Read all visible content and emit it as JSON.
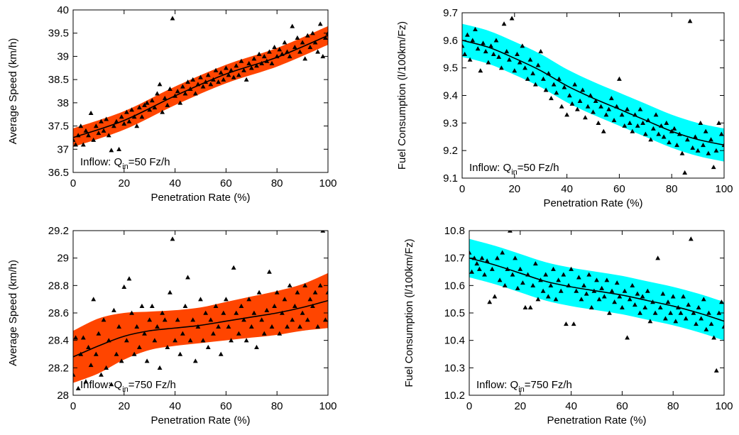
{
  "chart_data": [
    {
      "type": "scatter",
      "xlabel": "Penetration Rate (%)",
      "ylabel": "Average Speed (km/h)",
      "xlim": [
        0,
        100
      ],
      "ylim": [
        36.5,
        40
      ],
      "xticks": [
        "0",
        "20",
        "40",
        "60",
        "80",
        "100"
      ],
      "yticks": [
        "36.5",
        "37",
        "37.5",
        "38",
        "38.5",
        "39",
        "39.5",
        "40"
      ],
      "annotation": {
        "prefix": "Inflow: Q",
        "sub": "in",
        "suffix": "=50 Fz/h"
      },
      "band_color": "#ff4500",
      "fit": {
        "x": [
          0,
          20,
          40,
          60,
          80,
          100
        ],
        "y": [
          37.25,
          37.62,
          38.15,
          38.62,
          38.98,
          39.45
        ]
      },
      "band": {
        "x": [
          0,
          20,
          40,
          60,
          80,
          100
        ],
        "lower": [
          37.05,
          37.42,
          37.95,
          38.42,
          38.78,
          39.25
        ],
        "upper": [
          37.45,
          37.82,
          38.35,
          38.82,
          39.18,
          39.65
        ]
      },
      "points": {
        "x": [
          0,
          1,
          2,
          3,
          4,
          5,
          6,
          7,
          8,
          9,
          10,
          11,
          12,
          13,
          14,
          15,
          16,
          17,
          18,
          19,
          20,
          21,
          22,
          23,
          24,
          25,
          26,
          27,
          28,
          29,
          30,
          31,
          32,
          33,
          34,
          35,
          36,
          37,
          38,
          39,
          40,
          41,
          42,
          43,
          44,
          45,
          46,
          47,
          48,
          49,
          50,
          51,
          52,
          53,
          54,
          55,
          56,
          57,
          58,
          59,
          60,
          61,
          62,
          63,
          64,
          65,
          66,
          67,
          68,
          69,
          70,
          71,
          72,
          73,
          74,
          75,
          76,
          77,
          78,
          79,
          80,
          81,
          82,
          83,
          84,
          85,
          86,
          87,
          88,
          89,
          90,
          91,
          92,
          93,
          94,
          95,
          96,
          97,
          98,
          99,
          100
        ],
        "y": [
          37.2,
          37.1,
          37.3,
          37.5,
          37.1,
          37.4,
          37.3,
          37.78,
          37.2,
          37.5,
          37.35,
          37.6,
          37.4,
          37.65,
          37.3,
          36.98,
          37.5,
          37.6,
          37.0,
          37.7,
          37.55,
          37.8,
          37.6,
          37.85,
          37.7,
          37.5,
          37.9,
          37.7,
          37.95,
          38.0,
          37.85,
          38.05,
          37.9,
          38.2,
          38.4,
          37.8,
          38.1,
          37.95,
          38.3,
          39.82,
          38.15,
          38.25,
          38.0,
          38.35,
          38.2,
          38.45,
          38.3,
          38.5,
          38.2,
          38.4,
          38.55,
          38.35,
          38.45,
          38.6,
          38.4,
          38.5,
          38.7,
          38.45,
          38.65,
          38.5,
          38.75,
          38.6,
          38.7,
          38.55,
          38.8,
          38.6,
          38.9,
          38.7,
          38.5,
          38.85,
          38.75,
          38.95,
          38.8,
          39.05,
          38.85,
          39.0,
          38.9,
          39.1,
          38.85,
          39.2,
          39.0,
          39.15,
          39.05,
          39.3,
          39.1,
          39.0,
          39.65,
          39.2,
          39.4,
          39.1,
          39.3,
          38.95,
          39.45,
          39.2,
          39.5,
          39.3,
          39.1,
          39.7,
          39.0,
          39.4,
          39.5
        ]
      }
    },
    {
      "type": "scatter",
      "xlabel": "Penetration Rate (%)",
      "ylabel": "Fuel Consumption (l/100km/Fz)",
      "xlim": [
        0,
        100
      ],
      "ylim": [
        9.1,
        9.7
      ],
      "xticks": [
        "0",
        "20",
        "40",
        "60",
        "80",
        "100"
      ],
      "yticks": [
        "9.1",
        "9.2",
        "9.3",
        "9.4",
        "9.5",
        "9.6",
        "9.7"
      ],
      "annotation": {
        "prefix": "Inflow: Q",
        "sub": "in",
        "suffix": "=50 Fz/h"
      },
      "band_color": "#00ffff",
      "fit": {
        "x": [
          0,
          10,
          20,
          30,
          40,
          50,
          60,
          70,
          80,
          90,
          100
        ],
        "y": [
          9.6,
          9.575,
          9.535,
          9.49,
          9.435,
          9.39,
          9.35,
          9.31,
          9.27,
          9.24,
          9.22
        ]
      },
      "band": {
        "x": [
          0,
          10,
          20,
          30,
          40,
          50,
          60,
          70,
          80,
          90,
          100
        ],
        "lower": [
          9.54,
          9.515,
          9.475,
          9.43,
          9.375,
          9.33,
          9.29,
          9.25,
          9.21,
          9.18,
          9.16
        ],
        "upper": [
          9.66,
          9.635,
          9.595,
          9.55,
          9.495,
          9.45,
          9.41,
          9.37,
          9.33,
          9.3,
          9.28
        ]
      },
      "points": {
        "x": [
          0,
          1,
          2,
          3,
          4,
          5,
          6,
          7,
          8,
          9,
          10,
          11,
          12,
          13,
          14,
          15,
          16,
          17,
          18,
          19,
          20,
          21,
          22,
          23,
          24,
          25,
          26,
          27,
          28,
          29,
          30,
          31,
          32,
          33,
          34,
          35,
          36,
          37,
          38,
          39,
          40,
          41,
          42,
          43,
          44,
          45,
          46,
          47,
          48,
          49,
          50,
          51,
          52,
          53,
          54,
          55,
          56,
          57,
          58,
          59,
          60,
          61,
          62,
          63,
          64,
          65,
          66,
          67,
          68,
          69,
          70,
          71,
          72,
          73,
          74,
          75,
          76,
          77,
          78,
          79,
          80,
          81,
          82,
          83,
          84,
          85,
          86,
          87,
          88,
          89,
          90,
          91,
          92,
          93,
          94,
          95,
          96,
          97,
          98,
          99,
          100
        ],
        "y": [
          9.58,
          9.55,
          9.62,
          9.53,
          9.6,
          9.64,
          9.57,
          9.49,
          9.59,
          9.56,
          9.52,
          9.58,
          9.55,
          9.6,
          9.54,
          9.5,
          9.66,
          9.56,
          9.53,
          9.68,
          9.49,
          9.55,
          9.52,
          9.58,
          9.5,
          9.46,
          9.53,
          9.48,
          9.44,
          9.51,
          9.56,
          9.46,
          9.42,
          9.48,
          9.39,
          9.44,
          9.41,
          9.46,
          9.36,
          9.43,
          9.33,
          9.4,
          9.37,
          9.44,
          9.35,
          9.38,
          9.42,
          9.32,
          9.36,
          9.4,
          9.34,
          9.38,
          9.3,
          9.36,
          9.27,
          9.33,
          9.35,
          9.39,
          9.31,
          9.36,
          9.46,
          9.33,
          9.29,
          9.35,
          9.3,
          9.27,
          9.33,
          9.29,
          9.35,
          9.3,
          9.26,
          9.31,
          9.24,
          9.28,
          9.33,
          9.26,
          9.29,
          9.25,
          9.3,
          9.23,
          9.27,
          9.28,
          9.22,
          9.26,
          9.19,
          9.12,
          9.24,
          9.67,
          9.21,
          9.25,
          9.2,
          9.3,
          9.22,
          9.27,
          9.19,
          9.24,
          9.14,
          9.2,
          9.3,
          9.26,
          9.22
        ]
      }
    },
    {
      "type": "scatter",
      "xlabel": "Penetration Rate (%)",
      "ylabel": "Average Speed (km/h)",
      "xlim": [
        0,
        100
      ],
      "ylim": [
        28,
        29.2
      ],
      "xticks": [
        "0",
        "20",
        "40",
        "60",
        "80",
        "100"
      ],
      "yticks": [
        "28",
        "28.2",
        "28.4",
        "28.6",
        "28.8",
        "29",
        "29.2"
      ],
      "annotation": {
        "prefix": "Inflow: Q",
        "sub": "in",
        "suffix": "=750 Fz/h"
      },
      "band_color": "#ff4500",
      "fit": {
        "x": [
          0,
          10,
          20,
          30,
          40,
          50,
          60,
          70,
          80,
          90,
          100
        ],
        "y": [
          28.28,
          28.36,
          28.43,
          28.47,
          28.49,
          28.51,
          28.54,
          28.57,
          28.6,
          28.64,
          28.69
        ]
      },
      "band": {
        "x": [
          0,
          10,
          20,
          30,
          40,
          50,
          60,
          70,
          80,
          90,
          100
        ],
        "lower": [
          28.09,
          28.16,
          28.26,
          28.33,
          28.36,
          28.38,
          28.4,
          28.42,
          28.44,
          28.47,
          28.49
        ],
        "upper": [
          28.47,
          28.56,
          28.6,
          28.61,
          28.62,
          28.64,
          28.68,
          28.72,
          28.76,
          28.81,
          28.89
        ]
      },
      "points": {
        "x": [
          0,
          1,
          2,
          3,
          4,
          5,
          6,
          7,
          8,
          9,
          10,
          11,
          12,
          13,
          14,
          15,
          16,
          17,
          18,
          19,
          20,
          21,
          22,
          23,
          24,
          25,
          26,
          27,
          28,
          29,
          30,
          31,
          32,
          33,
          34,
          35,
          36,
          37,
          38,
          39,
          40,
          41,
          42,
          43,
          44,
          45,
          46,
          47,
          48,
          49,
          50,
          51,
          52,
          53,
          54,
          55,
          56,
          57,
          58,
          59,
          60,
          61,
          62,
          63,
          64,
          65,
          66,
          67,
          68,
          69,
          70,
          71,
          72,
          73,
          74,
          75,
          76,
          77,
          78,
          79,
          80,
          81,
          82,
          83,
          84,
          85,
          86,
          87,
          88,
          89,
          90,
          91,
          92,
          93,
          94,
          95,
          96,
          97,
          98,
          99,
          100
        ],
        "y": [
          28.15,
          28.42,
          28.05,
          28.3,
          28.42,
          28.1,
          28.35,
          28.22,
          28.7,
          28.3,
          28.45,
          28.15,
          28.55,
          28.2,
          28.4,
          28.08,
          28.62,
          28.3,
          28.5,
          28.25,
          28.79,
          28.4,
          28.85,
          28.6,
          28.3,
          28.5,
          28.35,
          28.65,
          28.45,
          28.25,
          28.55,
          28.65,
          28.4,
          28.5,
          28.2,
          28.6,
          28.55,
          28.35,
          28.75,
          29.14,
          28.4,
          28.55,
          28.3,
          28.45,
          28.65,
          28.86,
          28.4,
          28.55,
          28.25,
          28.5,
          28.7,
          28.4,
          28.6,
          28.35,
          28.55,
          28.45,
          28.65,
          28.5,
          28.3,
          28.6,
          28.7,
          28.5,
          28.4,
          28.93,
          28.6,
          28.45,
          28.65,
          28.55,
          28.4,
          28.7,
          28.5,
          28.6,
          28.35,
          28.75,
          28.55,
          28.45,
          28.62,
          28.9,
          28.5,
          28.65,
          28.75,
          28.45,
          28.6,
          28.7,
          28.5,
          28.8,
          28.55,
          28.65,
          28.75,
          28.5,
          28.6,
          28.8,
          28.55,
          28.7,
          28.65,
          28.75,
          28.5,
          28.8,
          29.2,
          28.55,
          28.75
        ]
      }
    },
    {
      "type": "scatter",
      "xlabel": "Penetration Rate (%)",
      "ylabel": "Fuel Consumption (l/100km/Fz)",
      "xlim": [
        0,
        100
      ],
      "ylim": [
        10.2,
        10.8
      ],
      "xticks": [
        "0",
        "20",
        "40",
        "60",
        "80",
        "100"
      ],
      "yticks": [
        "10.2",
        "10.3",
        "10.4",
        "10.5",
        "10.6",
        "10.7",
        "10.8"
      ],
      "annotation": {
        "prefix": "Inflow: Q",
        "sub": "in",
        "suffix": "=750 Fz/h"
      },
      "band_color": "#00ffff",
      "fit": {
        "x": [
          0,
          10,
          20,
          30,
          40,
          50,
          60,
          70,
          80,
          90,
          100
        ],
        "y": [
          10.7,
          10.675,
          10.645,
          10.615,
          10.595,
          10.58,
          10.565,
          10.545,
          10.525,
          10.5,
          10.47
        ]
      },
      "band": {
        "x": [
          0,
          10,
          20,
          30,
          40,
          50,
          60,
          70,
          80,
          90,
          100
        ],
        "lower": [
          10.63,
          10.605,
          10.575,
          10.545,
          10.525,
          10.51,
          10.495,
          10.475,
          10.455,
          10.43,
          10.4
        ],
        "upper": [
          10.77,
          10.745,
          10.715,
          10.685,
          10.665,
          10.65,
          10.635,
          10.615,
          10.595,
          10.57,
          10.54
        ]
      },
      "points": {
        "x": [
          0,
          1,
          2,
          3,
          4,
          5,
          6,
          7,
          8,
          9,
          10,
          11,
          12,
          13,
          14,
          15,
          16,
          17,
          18,
          19,
          20,
          21,
          22,
          23,
          24,
          25,
          26,
          27,
          28,
          29,
          30,
          31,
          32,
          33,
          34,
          35,
          36,
          37,
          38,
          39,
          40,
          41,
          42,
          43,
          44,
          45,
          46,
          47,
          48,
          49,
          50,
          51,
          52,
          53,
          54,
          55,
          56,
          57,
          58,
          59,
          60,
          61,
          62,
          63,
          64,
          65,
          66,
          67,
          68,
          69,
          70,
          71,
          72,
          73,
          74,
          75,
          76,
          77,
          78,
          79,
          80,
          81,
          82,
          83,
          84,
          85,
          86,
          87,
          88,
          89,
          90,
          91,
          92,
          93,
          94,
          95,
          96,
          97,
          98,
          99,
          100
        ],
        "y": [
          10.72,
          10.65,
          10.7,
          10.68,
          10.66,
          10.7,
          10.64,
          10.69,
          10.54,
          10.66,
          10.56,
          10.7,
          10.62,
          10.72,
          10.6,
          10.66,
          10.8,
          10.64,
          10.7,
          10.59,
          10.66,
          10.61,
          10.52,
          10.64,
          10.52,
          10.6,
          10.68,
          10.55,
          10.62,
          10.58,
          10.64,
          10.56,
          10.6,
          10.66,
          10.55,
          10.62,
          10.58,
          10.64,
          10.46,
          10.6,
          10.66,
          10.46,
          10.58,
          10.63,
          10.55,
          10.6,
          10.57,
          10.64,
          10.52,
          10.58,
          10.62,
          10.55,
          10.59,
          10.56,
          10.62,
          10.5,
          10.58,
          10.54,
          10.61,
          10.56,
          10.52,
          10.58,
          10.41,
          10.55,
          10.6,
          10.53,
          10.57,
          10.5,
          10.56,
          10.52,
          10.58,
          10.47,
          10.54,
          10.5,
          10.7,
          10.52,
          10.57,
          10.48,
          10.54,
          10.5,
          10.56,
          10.47,
          10.52,
          10.5,
          10.56,
          10.48,
          10.53,
          10.77,
          10.5,
          10.46,
          10.52,
          10.48,
          10.55,
          10.44,
          10.5,
          10.46,
          10.41,
          10.29,
          10.5,
          10.54,
          10.45
        ]
      }
    }
  ]
}
